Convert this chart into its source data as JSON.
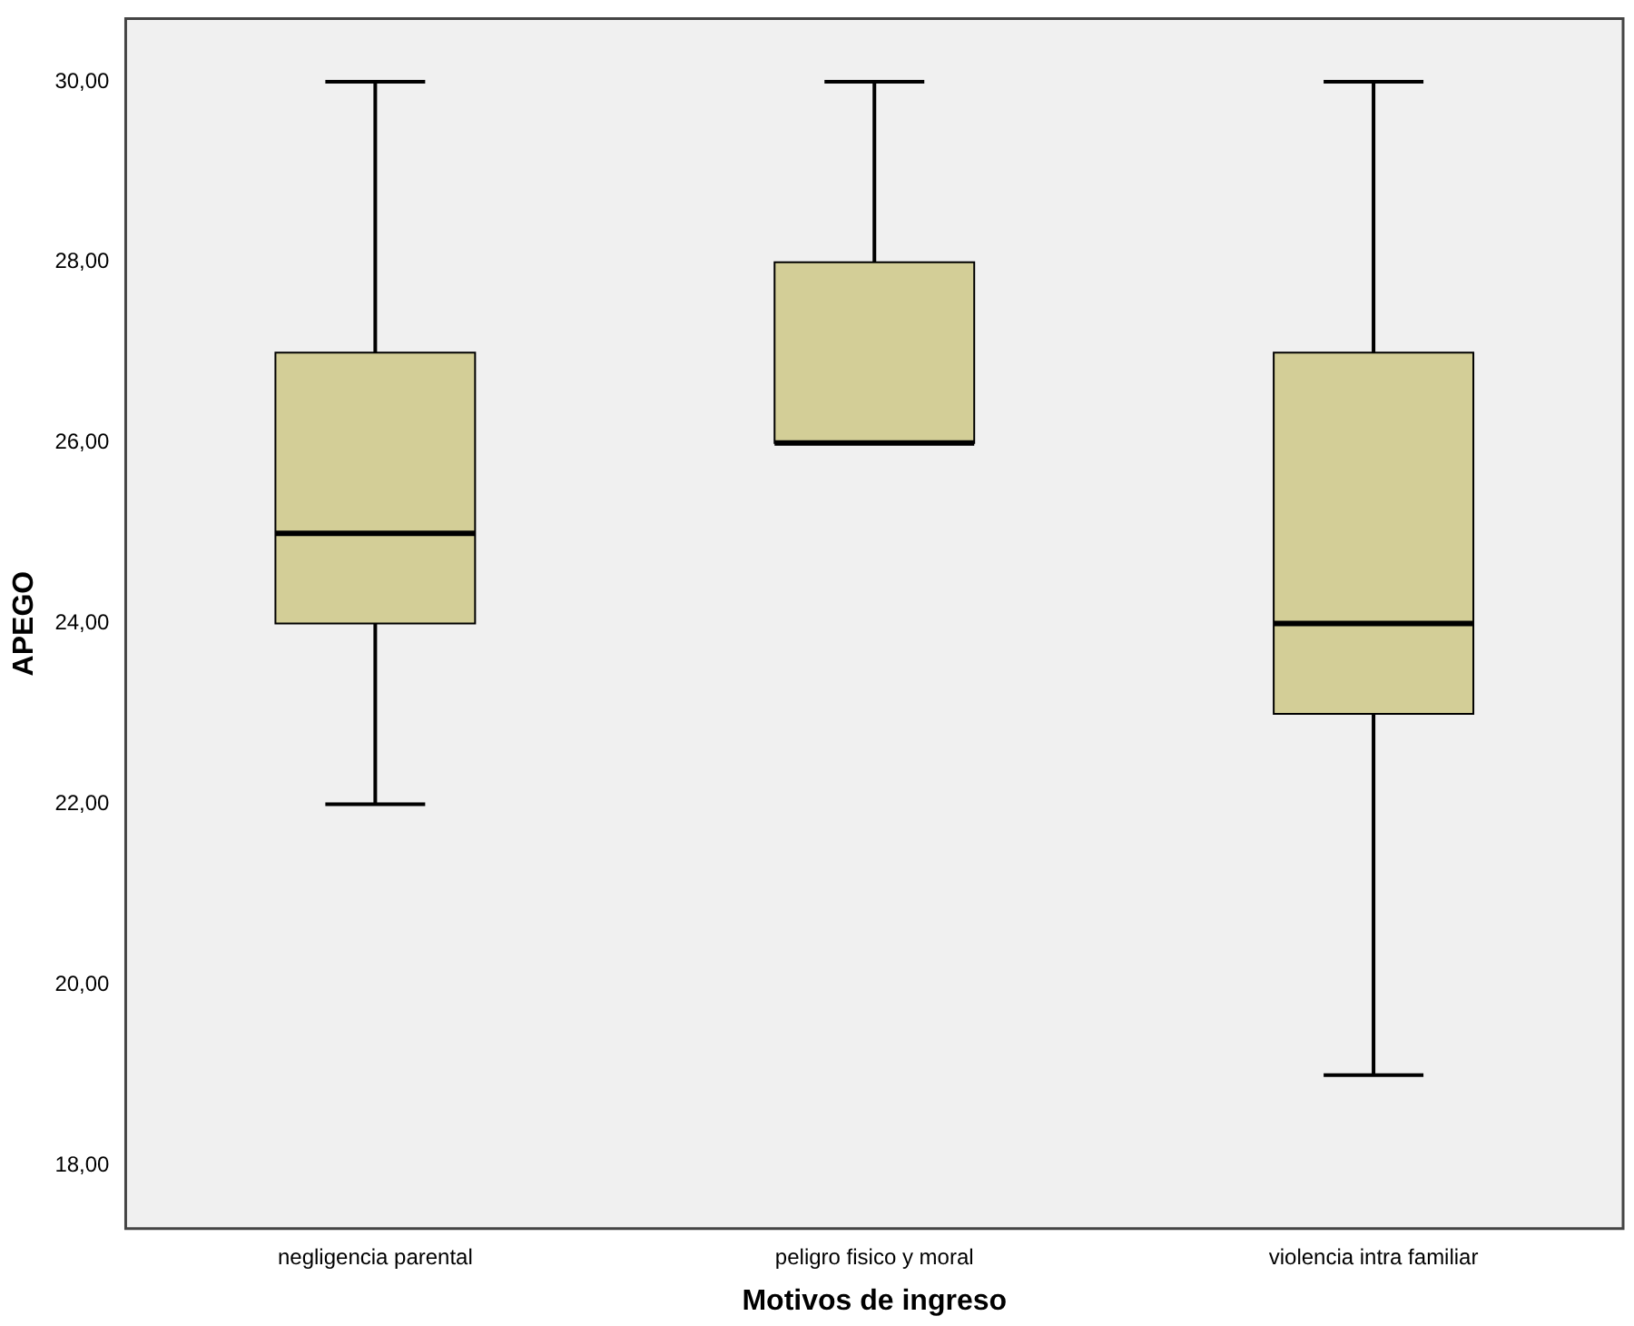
{
  "chart_data": {
    "type": "box",
    "xlabel": "Motivos de ingreso",
    "ylabel": "APEGO",
    "categories": [
      "negligencia parental",
      "peligro fisico y moral",
      "violencia intra familiar"
    ],
    "color": "#d3ce97",
    "boxes": [
      {
        "low": 22,
        "q1": 24,
        "median": 25,
        "q3": 27,
        "high": 30
      },
      {
        "low": 26,
        "q1": 26,
        "median": 26,
        "q3": 28,
        "high": 30
      },
      {
        "low": 19,
        "q1": 23,
        "median": 24,
        "q3": 27,
        "high": 30
      }
    ],
    "ylim": [
      17.3,
      30.7
    ],
    "yticks": [
      {
        "value": 18,
        "label": "18,00"
      },
      {
        "value": 20,
        "label": "20,00"
      },
      {
        "value": 22,
        "label": "22,00"
      },
      {
        "value": 24,
        "label": "24,00"
      },
      {
        "value": 26,
        "label": "26,00"
      },
      {
        "value": 28,
        "label": "28,00"
      },
      {
        "value": 30,
        "label": "30,00"
      }
    ],
    "grid": false,
    "legend": false
  }
}
